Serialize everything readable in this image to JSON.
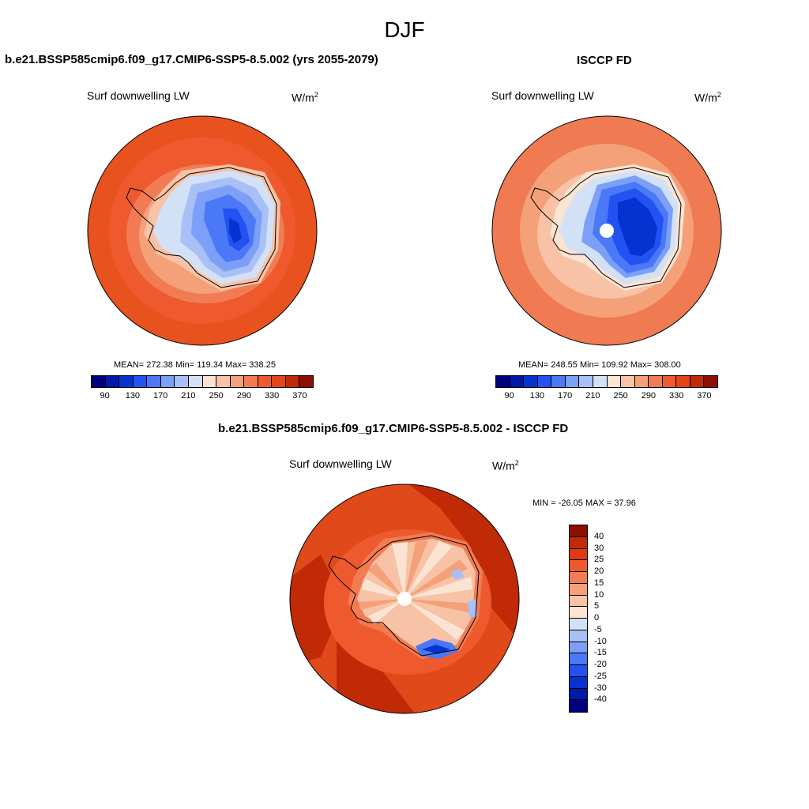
{
  "figure": {
    "title": "DJF"
  },
  "panels": [
    {
      "title": "b.e21.BSSP585cmip6.f09_g17.CMIP6-SSP5-8.5.002 (yrs 2055-2079)",
      "variable": "Surf downwelling LW",
      "unit_base": "W/m",
      "unit_exp": "2",
      "stats": "MEAN= 272.38  Min= 119.34  Max= 338.25",
      "colorbar": {
        "colors": [
          "#00007f",
          "#0019a8",
          "#0532d1",
          "#2352f2",
          "#4a78f7",
          "#7c9ff7",
          "#a9c0f7",
          "#d2e1f6",
          "#fbe4d3",
          "#f8c2a6",
          "#f4a078",
          "#f17c53",
          "#ee5a2d",
          "#e54416",
          "#c02a06",
          "#8e0e00"
        ],
        "tick_labels": [
          "90",
          "130",
          "170",
          "210",
          "250",
          "290",
          "330",
          "370"
        ]
      },
      "map": {
        "outer_fill": "#e8521f",
        "has_missing_pole": false
      }
    },
    {
      "title": "ISCCP FD",
      "variable": "Surf downwelling LW",
      "unit_base": "W/m",
      "unit_exp": "2",
      "stats": "MEAN= 248.55  Min= 109.92  Max= 308.00",
      "colorbar": {
        "colors": [
          "#00007f",
          "#0019a8",
          "#0532d1",
          "#2352f2",
          "#4a78f7",
          "#7c9ff7",
          "#a9c0f7",
          "#d2e1f6",
          "#fbe4d3",
          "#f8c2a6",
          "#f4a078",
          "#f17c53",
          "#ee5a2d",
          "#e54416",
          "#c02a06",
          "#8e0e00"
        ],
        "tick_labels": [
          "90",
          "130",
          "170",
          "210",
          "250",
          "290",
          "330",
          "370"
        ]
      },
      "map": {
        "outer_fill": "#f07a52",
        "has_missing_pole": true
      }
    },
    {
      "title": "b.e21.BSSP585cmip6.f09_g17.CMIP6-SSP5-8.5.002 - ISCCP FD",
      "variable": "Surf downwelling LW",
      "unit_base": "W/m",
      "unit_exp": "2",
      "stats": "MIN = -26.05 MAX =  37.96",
      "colorbar": {
        "colors": [
          "#8e0e00",
          "#c02a06",
          "#e03a10",
          "#ee5a2d",
          "#f17c53",
          "#f4a078",
          "#f8c2a6",
          "#fbe4d3",
          "#d2e1f6",
          "#a9c0f7",
          "#7c9ff7",
          "#4a78f7",
          "#2352f2",
          "#0532d1",
          "#0019a8",
          "#00007f"
        ],
        "tick_labels": [
          "40",
          "30",
          "25",
          "20",
          "15",
          "10",
          "5",
          "0",
          "-5",
          "-10",
          "-15",
          "-20",
          "-25",
          "-30",
          "-40"
        ]
      },
      "map": {
        "outer_fill": "#e04a1a",
        "has_missing_pole": true
      }
    }
  ]
}
